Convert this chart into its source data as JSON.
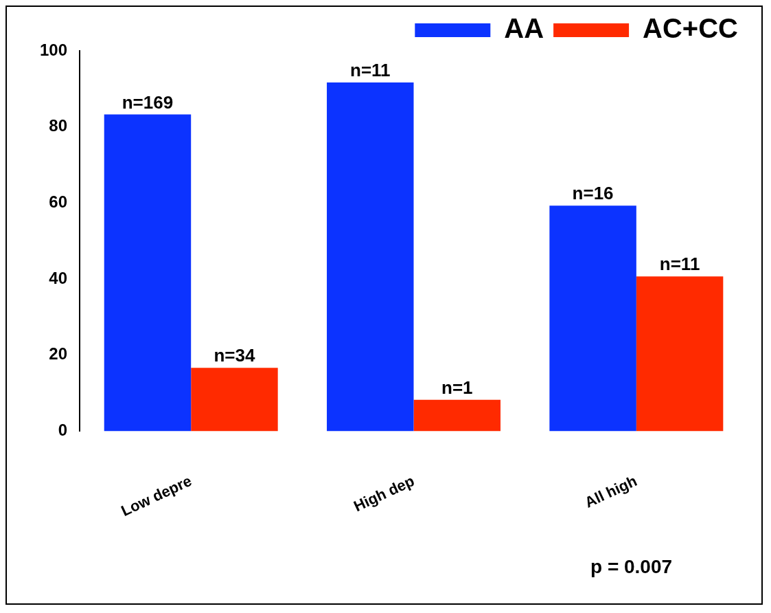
{
  "chart_data": {
    "type": "bar",
    "categories": [
      "Low depre",
      "High dep",
      "All high"
    ],
    "series": [
      {
        "name": "AA",
        "color": "#0c33ff",
        "values": [
          83.3,
          91.7,
          59.3
        ]
      },
      {
        "name": "AC+CC",
        "color": "#ff2a00",
        "values": [
          16.7,
          8.3,
          40.7
        ]
      }
    ],
    "ylim": [
      0,
      100
    ],
    "yticks": [
      0,
      20,
      40,
      60,
      80,
      100
    ],
    "grid": false,
    "legend": "top right",
    "annotations": [
      {
        "text": "n=169",
        "x": "Low depre",
        "y": 83.3
      },
      {
        "text": "n=11",
        "x": "High dep",
        "y": 91.7
      },
      {
        "text": "n=16",
        "x": "All high",
        "y": 59.3
      },
      {
        "text": "n=34",
        "x": "Low depre",
        "y": 16.7
      },
      {
        "text": "n=1",
        "x": "High dep",
        "y": 8.3
      },
      {
        "text": "n=11",
        "x": "All high",
        "y": 40.7
      },
      "p = 0.007"
    ]
  }
}
